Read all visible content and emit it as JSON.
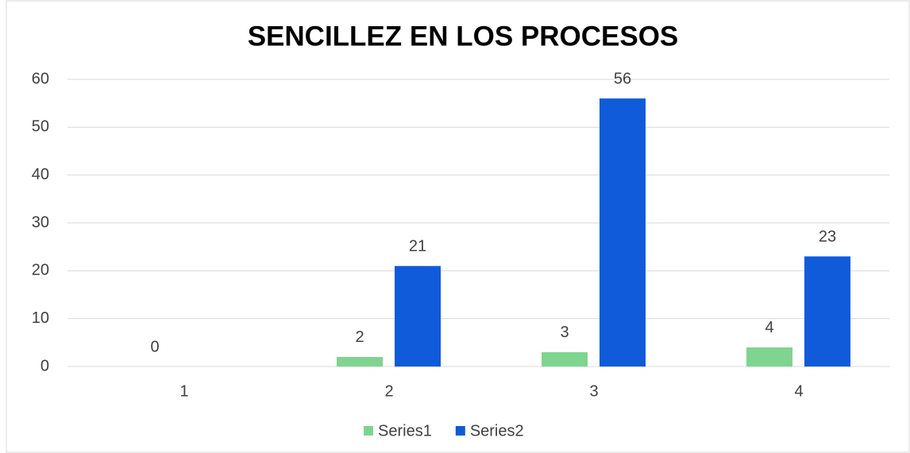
{
  "chart_data": {
    "type": "bar",
    "title": "SENCILLEZ EN LOS PROCESOS",
    "categories": [
      "1",
      "2",
      "3",
      "4"
    ],
    "series": [
      {
        "name": "Series1",
        "color": "#7fd48f",
        "values": [
          0,
          2,
          3,
          4
        ]
      },
      {
        "name": "Series2",
        "color": "#0f5bd9",
        "values": [
          null,
          21,
          56,
          23
        ]
      }
    ],
    "ylim": [
      0,
      60
    ],
    "yticks": [
      0,
      10,
      20,
      30,
      40,
      50,
      60
    ],
    "grid": true,
    "legend": "bottom"
  }
}
